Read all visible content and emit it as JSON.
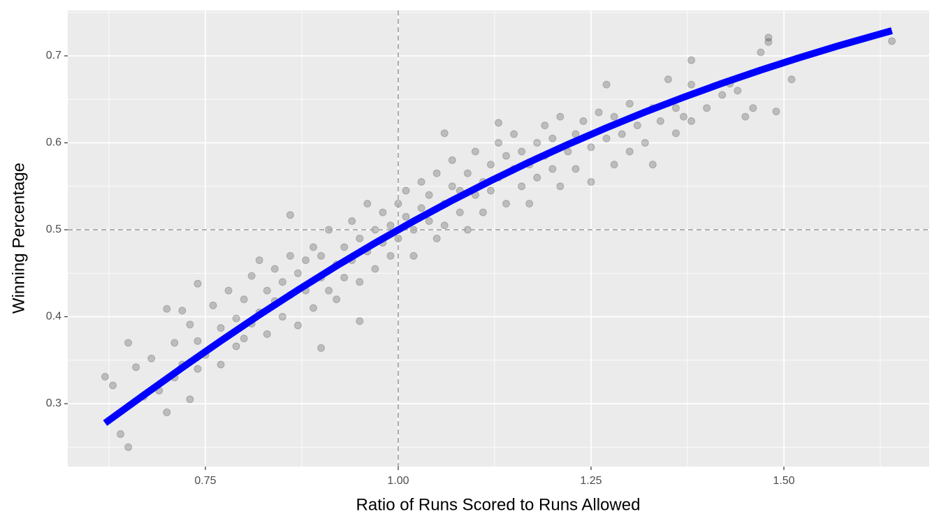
{
  "chart_data": {
    "type": "scatter",
    "xlabel": "Ratio of Runs Scored to Runs Allowed",
    "ylabel": "Winning Percentage",
    "xlim": [
      0.5716,
      1.6884
    ],
    "ylim": [
      0.2277,
      0.7522
    ],
    "xticks": [
      0.75,
      {
        "value": 1,
        "label": "1.00"
      },
      1.25,
      {
        "value": 1.5,
        "label": "1.50"
      }
    ],
    "yticks": [
      0.3,
      0.4,
      0.5,
      0.6,
      0.7
    ],
    "xminor": [
      0.625,
      0.875,
      1.125,
      1.375,
      1.625
    ],
    "yminor": [
      0.25,
      0.35,
      0.45,
      0.55,
      0.65,
      0.75
    ],
    "grid": true,
    "vline": 1,
    "hline": 0.5,
    "points": {
      "color": "#000000",
      "alpha": 0.2,
      "x": [
        0.62,
        0.63,
        0.64,
        0.65,
        0.65,
        0.7,
        0.7,
        0.74,
        1.38,
        1.47,
        1.48,
        1.48,
        1.64,
        1.51,
        1.49,
        1.27,
        1.06,
        1.13,
        0.86,
        0.9,
        0.95,
        1.36,
        0.66,
        0.67,
        0.68,
        0.69,
        0.71,
        0.71,
        0.72,
        0.72,
        0.73,
        0.73,
        0.74,
        0.74,
        0.75,
        0.76,
        0.77,
        0.77,
        0.78,
        0.79,
        0.79,
        0.8,
        0.8,
        0.81,
        0.81,
        0.82,
        0.82,
        0.83,
        0.83,
        0.84,
        0.84,
        0.85,
        0.85,
        0.86,
        0.86,
        0.87,
        0.87,
        0.88,
        0.88,
        0.89,
        0.89,
        0.9,
        0.9,
        0.91,
        0.91,
        0.92,
        0.92,
        0.93,
        0.93,
        0.94,
        0.94,
        0.95,
        0.95,
        0.96,
        0.96,
        0.97,
        0.97,
        0.98,
        0.98,
        0.99,
        0.99,
        1.0,
        1.0,
        1.01,
        1.01,
        1.02,
        1.02,
        1.03,
        1.03,
        1.04,
        1.04,
        1.05,
        1.05,
        1.06,
        1.06,
        1.07,
        1.07,
        1.08,
        1.08,
        1.09,
        1.09,
        1.1,
        1.1,
        1.11,
        1.11,
        1.12,
        1.12,
        1.13,
        1.13,
        1.14,
        1.14,
        1.15,
        1.15,
        1.16,
        1.16,
        1.17,
        1.17,
        1.18,
        1.18,
        1.19,
        1.19,
        1.2,
        1.2,
        1.21,
        1.21,
        1.22,
        1.23,
        1.23,
        1.24,
        1.25,
        1.25,
        1.26,
        1.27,
        1.28,
        1.28,
        1.29,
        1.3,
        1.3,
        1.31,
        1.32,
        1.33,
        1.33,
        1.34,
        1.35,
        1.36,
        1.37,
        1.38,
        1.38,
        1.4,
        1.42,
        1.43,
        1.44,
        1.45,
        1.46
      ],
      "y": [
        0.331,
        0.321,
        0.265,
        0.25,
        0.37,
        0.29,
        0.409,
        0.438,
        0.695,
        0.704,
        0.716,
        0.721,
        0.717,
        0.673,
        0.636,
        0.667,
        0.611,
        0.623,
        0.517,
        0.364,
        0.395,
        0.611,
        0.342,
        0.308,
        0.352,
        0.315,
        0.37,
        0.33,
        0.345,
        0.407,
        0.391,
        0.305,
        0.372,
        0.34,
        0.356,
        0.413,
        0.387,
        0.345,
        0.43,
        0.366,
        0.398,
        0.42,
        0.375,
        0.447,
        0.392,
        0.405,
        0.465,
        0.43,
        0.38,
        0.418,
        0.455,
        0.4,
        0.44,
        0.47,
        0.425,
        0.39,
        0.45,
        0.43,
        0.465,
        0.41,
        0.48,
        0.445,
        0.47,
        0.43,
        0.5,
        0.46,
        0.42,
        0.48,
        0.445,
        0.51,
        0.465,
        0.49,
        0.44,
        0.475,
        0.53,
        0.5,
        0.455,
        0.52,
        0.485,
        0.505,
        0.47,
        0.53,
        0.49,
        0.515,
        0.545,
        0.5,
        0.47,
        0.525,
        0.555,
        0.51,
        0.54,
        0.49,
        0.565,
        0.53,
        0.505,
        0.55,
        0.58,
        0.52,
        0.545,
        0.565,
        0.5,
        0.54,
        0.59,
        0.555,
        0.52,
        0.575,
        0.545,
        0.6,
        0.56,
        0.53,
        0.585,
        0.57,
        0.61,
        0.55,
        0.59,
        0.575,
        0.53,
        0.6,
        0.56,
        0.62,
        0.585,
        0.57,
        0.605,
        0.55,
        0.63,
        0.59,
        0.61,
        0.57,
        0.625,
        0.595,
        0.555,
        0.635,
        0.605,
        0.575,
        0.63,
        0.61,
        0.645,
        0.59,
        0.62,
        0.6,
        0.64,
        0.575,
        0.625,
        0.673,
        0.64,
        0.63,
        0.667,
        0.625,
        0.64,
        0.655,
        0.668,
        0.66,
        0.63,
        0.64
      ]
    },
    "curve": {
      "color": "#0000ff",
      "x": [
        0.62,
        0.67,
        0.72,
        0.77,
        0.82,
        0.87,
        0.92,
        0.97,
        1.02,
        1.07,
        1.12,
        1.17,
        1.22,
        1.27,
        1.32,
        1.37,
        1.42,
        1.47,
        1.52,
        1.57,
        1.64
      ],
      "y": [
        0.2777,
        0.3098,
        0.3414,
        0.3722,
        0.4021,
        0.4308,
        0.4584,
        0.4848,
        0.5099,
        0.5338,
        0.5564,
        0.5779,
        0.5981,
        0.6173,
        0.6354,
        0.6524,
        0.6685,
        0.6836,
        0.6979,
        0.7114,
        0.729
      ]
    }
  }
}
